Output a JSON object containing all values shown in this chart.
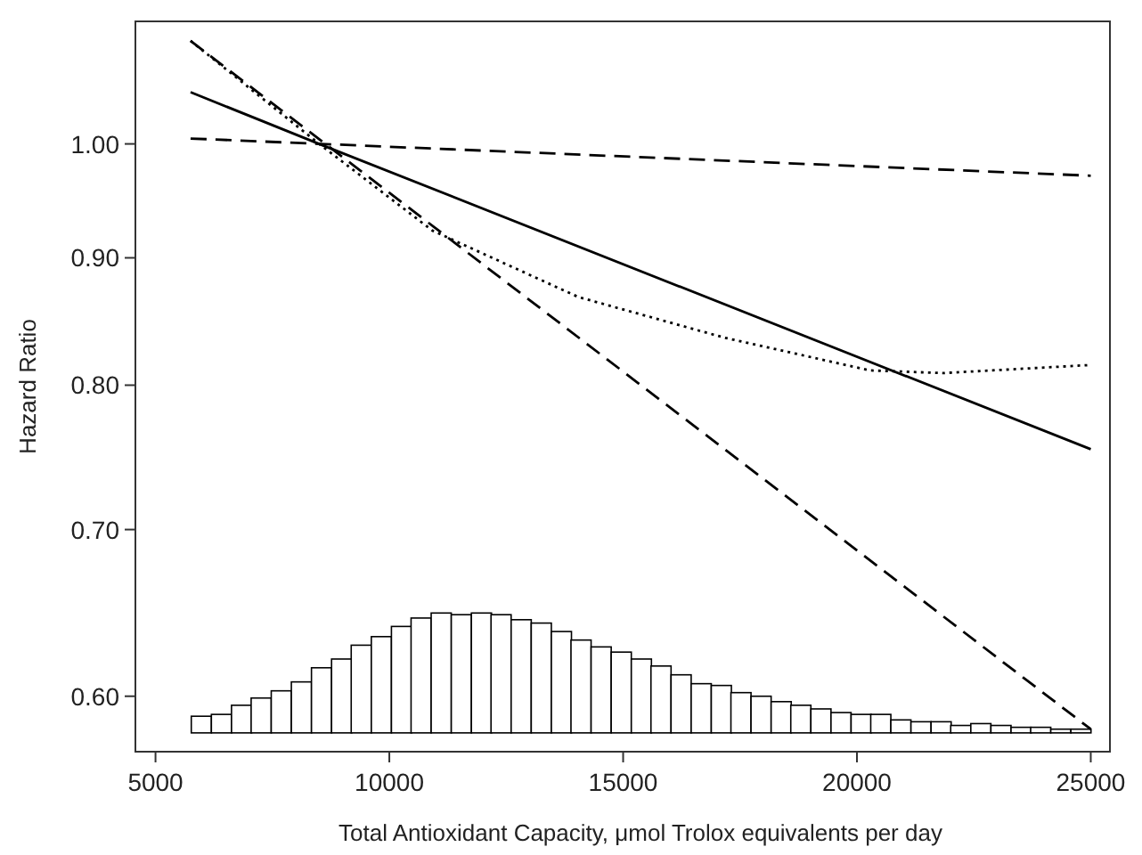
{
  "chart_data": {
    "type": "line",
    "xlabel": "Total Antioxidant Capacity, μmol Trolox equivalents per day",
    "ylabel": "Hazard Ratio",
    "xlim": [
      4570,
      25410
    ],
    "ylim": [
      0.57,
      1.12
    ],
    "log": "y",
    "grid": false,
    "xticks": [
      5000,
      10000,
      15000,
      20000,
      25000
    ],
    "yticks": [
      {
        "value": 0.6,
        "label": "0.60"
      },
      {
        "value": 0.7,
        "label": "0.70"
      },
      {
        "value": 0.8,
        "label": "0.80"
      },
      {
        "value": 0.9,
        "label": "0.90"
      },
      {
        "value": 1.0,
        "label": "1.00"
      }
    ],
    "series": [
      {
        "type": "bar",
        "color": "#ffffff",
        "x": [
          5980,
          6410,
          6840,
          7260,
          7690,
          8120,
          8550,
          8980,
          9400,
          9830,
          10260,
          10680,
          11110,
          11540,
          11970,
          12390,
          12820,
          13250,
          13680,
          14100,
          14530,
          14960,
          15390,
          15810,
          16240,
          16670,
          17100,
          17520,
          17950,
          18380,
          18800,
          19230,
          19660,
          20090,
          20510,
          20940,
          21370,
          21800,
          22220,
          22650,
          23080,
          23510,
          23930,
          24360,
          24790
        ],
        "base": [
          0.58,
          0.58,
          0.58,
          0.58,
          0.58,
          0.58,
          0.58,
          0.58,
          0.58,
          0.58,
          0.58,
          0.58,
          0.58,
          0.58,
          0.58,
          0.58,
          0.58,
          0.58,
          0.58,
          0.58,
          0.58,
          0.58,
          0.58,
          0.58,
          0.58,
          0.58,
          0.58,
          0.58,
          0.58,
          0.58,
          0.58,
          0.58,
          0.58,
          0.58,
          0.58,
          0.58,
          0.58,
          0.58,
          0.58,
          0.58,
          0.58,
          0.58,
          0.58,
          0.58,
          0.58
        ],
        "values": [
          0.009,
          0.01,
          0.015,
          0.019,
          0.023,
          0.028,
          0.036,
          0.041,
          0.049,
          0.054,
          0.06,
          0.065,
          0.068,
          0.067,
          0.068,
          0.067,
          0.064,
          0.062,
          0.057,
          0.052,
          0.048,
          0.045,
          0.041,
          0.037,
          0.032,
          0.027,
          0.026,
          0.022,
          0.02,
          0.017,
          0.015,
          0.013,
          0.011,
          0.01,
          0.01,
          0.007,
          0.006,
          0.006,
          0.004,
          0.005,
          0.004,
          0.003,
          0.003,
          0.002,
          0.002
        ]
      },
      {
        "color": "#000000",
        "line_style": "solid",
        "x": [
          5750,
          8500,
          25000
        ],
        "values": [
          1.049,
          1.0,
          0.754
        ]
      },
      {
        "color": "#000000",
        "line_style": "dashed",
        "x": [
          5750,
          25000
        ],
        "values": [
          1.005,
          0.971
        ]
      },
      {
        "color": "#000000",
        "line_style": "dashed",
        "x": [
          5750,
          25000
        ],
        "values": [
          1.1,
          0.582
        ]
      },
      {
        "color": "#000000",
        "line_style": "dotted",
        "x": [
          5750,
          8500,
          10920,
          14040,
          17160,
          20280,
          21840,
          24960
        ],
        "values": [
          1.1,
          1.0,
          0.923,
          0.868,
          0.836,
          0.811,
          0.809,
          0.815
        ]
      }
    ]
  }
}
